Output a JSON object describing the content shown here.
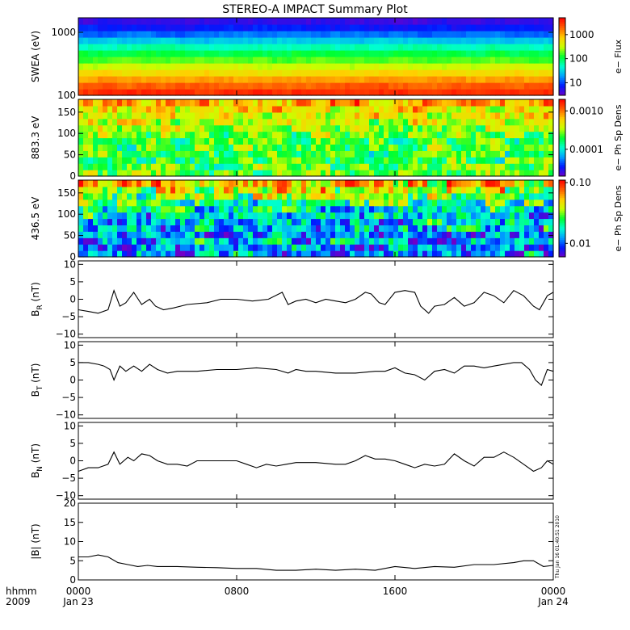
{
  "title": "STEREO-A IMPACT Summary Plot",
  "x_axis": {
    "time_label": "hhmm",
    "year_label": "2009",
    "ticks": [
      {
        "label": "0000",
        "date": "Jan 23",
        "hour": 0
      },
      {
        "label": "0800",
        "date": "",
        "hour": 8
      },
      {
        "label": "1600",
        "date": "",
        "hour": 16
      },
      {
        "label": "0000",
        "date": "Jan 24",
        "hour": 24
      }
    ]
  },
  "timestamp": "Thu Jan 16 01:40:51 2010",
  "colors": {
    "colormap": [
      "#7000c8",
      "#0018ff",
      "#00a0ff",
      "#00ffd0",
      "#00ff30",
      "#c8ff00",
      "#ffd000",
      "#ff6000",
      "#ff0000"
    ],
    "line": "#000000",
    "frame": "#000000"
  },
  "chart_data": [
    {
      "type": "heatmap",
      "ylabel": "SWEA (eV)",
      "yscale": "log",
      "ylim": [
        100,
        1700
      ],
      "yticks": [
        {
          "v": 100,
          "label": "100"
        },
        {
          "v": 1000,
          "label": "1000"
        }
      ],
      "colorbar": {
        "label": "e− Flux",
        "scale": "log",
        "range": [
          3,
          5000
        ],
        "ticks": [
          {
            "v": 10,
            "label": "10"
          },
          {
            "v": 100,
            "label": "100"
          },
          {
            "v": 1000,
            "label": "1000"
          }
        ]
      },
      "profile_by_y": [
        {
          "y": 100,
          "c": 4000
        },
        {
          "y": 130,
          "c": 2500
        },
        {
          "y": 180,
          "c": 1200
        },
        {
          "y": 250,
          "c": 500
        },
        {
          "y": 350,
          "c": 200
        },
        {
          "y": 500,
          "c": 90
        },
        {
          "y": 700,
          "c": 35
        },
        {
          "y": 900,
          "c": 15
        },
        {
          "y": 1200,
          "c": 7
        },
        {
          "y": 1700,
          "c": 4
        }
      ]
    },
    {
      "type": "heatmap",
      "ylabel": "883.3 eV",
      "ylim": [
        0,
        180
      ],
      "yticks": [
        {
          "v": 0,
          "label": "0"
        },
        {
          "v": 50,
          "label": "50"
        },
        {
          "v": 100,
          "label": "100"
        },
        {
          "v": 150,
          "label": "150"
        }
      ],
      "colorbar": {
        "label": "e− Ph Sp Dens",
        "scale": "log",
        "range": [
          2e-05,
          0.002
        ],
        "ticks": [
          {
            "v": 0.0001,
            "label": "0.0001"
          },
          {
            "v": 0.001,
            "label": "0.0010"
          }
        ]
      },
      "profile_by_y": [
        {
          "y": 0,
          "c": 0.00025
        },
        {
          "y": 45,
          "c": 0.0002
        },
        {
          "y": 90,
          "c": 0.00025
        },
        {
          "y": 135,
          "c": 0.0004
        },
        {
          "y": 180,
          "c": 0.0008
        }
      ]
    },
    {
      "type": "heatmap",
      "ylabel": "436.5 eV",
      "ylim": [
        0,
        180
      ],
      "yticks": [
        {
          "v": 0,
          "label": "0"
        },
        {
          "v": 50,
          "label": "50"
        },
        {
          "v": 100,
          "label": "100"
        },
        {
          "v": 150,
          "label": "150"
        }
      ],
      "colorbar": {
        "label": "e− Ph Sp Dens",
        "scale": "log",
        "range": [
          0.006,
          0.11
        ],
        "ticks": [
          {
            "v": 0.01,
            "label": "0.01"
          },
          {
            "v": 0.1,
            "label": "0.10"
          }
        ]
      },
      "profile_by_y": [
        {
          "y": 0,
          "c": 0.012
        },
        {
          "y": 60,
          "c": 0.013
        },
        {
          "y": 100,
          "c": 0.016
        },
        {
          "y": 140,
          "c": 0.03
        },
        {
          "y": 180,
          "c": 0.06
        }
      ]
    },
    {
      "type": "line",
      "ylabel_main": "B",
      "ylabel_sub": "R",
      "ylabel_unit": " (nT)",
      "ylim": [
        -11,
        11
      ],
      "yticks": [
        {
          "v": -10,
          "label": "−10"
        },
        {
          "v": -5,
          "label": "−5"
        },
        {
          "v": 0,
          "label": "0"
        },
        {
          "v": 5,
          "label": "5"
        },
        {
          "v": 10,
          "label": "10"
        }
      ],
      "x_hours": [
        0,
        0.5,
        1,
        1.5,
        1.8,
        2.1,
        2.4,
        2.8,
        3.2,
        3.6,
        3.9,
        4.3,
        4.8,
        5.5,
        6.5,
        7.2,
        8,
        8.8,
        9.6,
        10.3,
        10.6,
        11,
        11.5,
        12,
        12.5,
        13,
        13.5,
        14,
        14.5,
        14.8,
        15.2,
        15.5,
        16,
        16.5,
        17,
        17.3,
        17.7,
        18,
        18.5,
        19,
        19.5,
        20,
        20.5,
        21,
        21.5,
        22,
        22.5,
        23,
        23.3,
        23.7,
        24
      ],
      "y": [
        -3,
        -3.5,
        -4,
        -3,
        2.5,
        -2,
        -1,
        2,
        -1.5,
        0,
        -2,
        -3,
        -2.5,
        -1.5,
        -1,
        0,
        0,
        -0.5,
        0,
        2,
        -1.5,
        -0.5,
        0,
        -1,
        0,
        -0.5,
        -1,
        0,
        2,
        1.5,
        -1,
        -1.5,
        2,
        2.5,
        2,
        -2,
        -4,
        -2,
        -1.5,
        0.5,
        -2,
        -1,
        2,
        1,
        -1,
        2.5,
        1,
        -2,
        -3,
        1,
        2
      ]
    },
    {
      "type": "line",
      "ylabel_main": "B",
      "ylabel_sub": "T",
      "ylabel_unit": " (nT)",
      "ylim": [
        -11,
        11
      ],
      "yticks": [
        {
          "v": -10,
          "label": "−10"
        },
        {
          "v": -5,
          "label": "−5"
        },
        {
          "v": 0,
          "label": "0"
        },
        {
          "v": 5,
          "label": "5"
        },
        {
          "v": 10,
          "label": "10"
        }
      ],
      "x_hours": [
        0,
        0.5,
        1,
        1.3,
        1.6,
        1.8,
        2.1,
        2.4,
        2.8,
        3.2,
        3.6,
        4,
        4.5,
        5,
        6,
        7,
        8,
        9,
        10,
        10.6,
        11,
        11.5,
        12,
        13,
        14,
        15,
        15.5,
        16,
        16.5,
        17,
        17.5,
        18,
        18.5,
        19,
        19.5,
        20,
        20.5,
        21,
        21.5,
        22,
        22.4,
        22.8,
        23.1,
        23.4,
        23.7,
        24
      ],
      "y": [
        5,
        5,
        4.5,
        4,
        3,
        0,
        4,
        2.5,
        4,
        2.5,
        4.5,
        3,
        2,
        2.5,
        2.5,
        3,
        3,
        3.5,
        3,
        2,
        3,
        2.5,
        2.5,
        2,
        2,
        2.5,
        2.5,
        3.5,
        2,
        1.5,
        0,
        2.5,
        3,
        2,
        4,
        4,
        3.5,
        4,
        4.5,
        5,
        5,
        3,
        0,
        -1.5,
        3,
        2.5
      ]
    },
    {
      "type": "line",
      "ylabel_main": "B",
      "ylabel_sub": "N",
      "ylabel_unit": " (nT)",
      "ylim": [
        -11,
        11
      ],
      "yticks": [
        {
          "v": -10,
          "label": "−10"
        },
        {
          "v": -5,
          "label": "−5"
        },
        {
          "v": 0,
          "label": "0"
        },
        {
          "v": 5,
          "label": "5"
        },
        {
          "v": 10,
          "label": "10"
        }
      ],
      "x_hours": [
        0,
        0.5,
        1,
        1.5,
        1.8,
        2.1,
        2.5,
        2.8,
        3.2,
        3.6,
        4,
        4.5,
        5,
        5.5,
        6,
        7,
        8,
        8.5,
        9,
        9.5,
        10,
        10.5,
        11,
        12,
        13,
        13.5,
        14,
        14.5,
        15,
        15.5,
        16,
        16.5,
        17,
        17.5,
        18,
        18.5,
        19,
        19.5,
        20,
        20.5,
        21,
        21.5,
        22,
        22.5,
        23,
        23.4,
        23.7,
        24
      ],
      "y": [
        -3,
        -2,
        -2,
        -1,
        2.5,
        -1,
        1,
        0,
        2,
        1.5,
        0,
        -1,
        -1,
        -1.5,
        0,
        0,
        0,
        -1,
        -2,
        -1,
        -1.5,
        -1,
        -0.5,
        -0.5,
        -1,
        -1,
        0,
        1.5,
        0.5,
        0.5,
        0,
        -1,
        -2,
        -1,
        -1.5,
        -1,
        2,
        0,
        -1.5,
        1,
        1,
        2.5,
        1,
        -1,
        -3,
        -2,
        0,
        -1
      ]
    },
    {
      "type": "line",
      "ylabel_main": "|B|",
      "ylabel_sub": "",
      "ylabel_unit": " (nT)",
      "ylim": [
        0,
        20
      ],
      "yticks": [
        {
          "v": 0,
          "label": "0"
        },
        {
          "v": 5,
          "label": "5"
        },
        {
          "v": 10,
          "label": "10"
        },
        {
          "v": 15,
          "label": "15"
        },
        {
          "v": 20,
          "label": "20"
        }
      ],
      "x_hours": [
        0,
        0.5,
        1,
        1.5,
        2,
        2.5,
        3,
        3.5,
        4,
        5,
        6,
        7,
        8,
        9,
        10,
        11,
        12,
        13,
        14,
        15,
        16,
        17,
        18,
        19,
        20,
        21,
        22,
        22.5,
        23,
        23.5,
        24
      ],
      "y": [
        6,
        6,
        6.5,
        6,
        4.5,
        4,
        3.5,
        3.8,
        3.5,
        3.5,
        3.3,
        3.2,
        3,
        3,
        2.5,
        2.5,
        2.8,
        2.5,
        2.8,
        2.5,
        3.5,
        3,
        3.5,
        3.3,
        4,
        4,
        4.5,
        5,
        5,
        3.5,
        3.8
      ]
    }
  ]
}
